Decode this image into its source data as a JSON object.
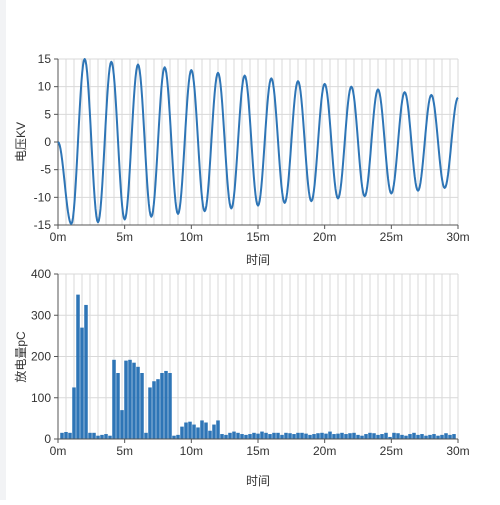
{
  "colors": {
    "series": "#2e75b6",
    "grid": "#d9d9d9",
    "axis": "#555555",
    "text": "#333333",
    "page_edge": "#f2f3f5"
  },
  "chart_data": [
    {
      "type": "line",
      "title": "",
      "xlabel": "时间",
      "ylabel": "电压KV",
      "xlim": [
        0,
        30
      ],
      "ylim": [
        -15,
        15
      ],
      "x_unit": "m",
      "x_ticks": [
        "0m",
        "5m",
        "10m",
        "15m",
        "20m",
        "25m",
        "30m"
      ],
      "y_ticks": [
        "15",
        "10",
        "5",
        "0",
        "-5",
        "-10",
        "-15"
      ],
      "grid": true,
      "legend": "none",
      "series": [
        {
          "name": "",
          "peaks": [
            {
              "x": 0.0,
              "y": 0
            },
            {
              "x": 1.0,
              "y": -14.8
            },
            {
              "x": 2.0,
              "y": 15.0
            },
            {
              "x": 3.0,
              "y": -14.5
            },
            {
              "x": 4.0,
              "y": 14.5
            },
            {
              "x": 5.0,
              "y": -14.0
            },
            {
              "x": 6.0,
              "y": 14.0
            },
            {
              "x": 7.0,
              "y": -13.5
            },
            {
              "x": 8.0,
              "y": 13.5
            },
            {
              "x": 9.0,
              "y": -13.0
            },
            {
              "x": 10.0,
              "y": 13.0
            },
            {
              "x": 11.0,
              "y": -12.5
            },
            {
              "x": 12.0,
              "y": 12.5
            },
            {
              "x": 13.0,
              "y": -12.0
            },
            {
              "x": 14.0,
              "y": 12.0
            },
            {
              "x": 15.0,
              "y": -11.5
            },
            {
              "x": 16.0,
              "y": 11.5
            },
            {
              "x": 17.0,
              "y": -11.0
            },
            {
              "x": 18.0,
              "y": 11.0
            },
            {
              "x": 19.0,
              "y": -10.7
            },
            {
              "x": 20.0,
              "y": 10.5
            },
            {
              "x": 21.0,
              "y": -10.2
            },
            {
              "x": 22.0,
              "y": 10.0
            },
            {
              "x": 23.0,
              "y": -9.8
            },
            {
              "x": 24.0,
              "y": 9.5
            },
            {
              "x": 25.0,
              "y": -9.3
            },
            {
              "x": 26.0,
              "y": 9.0
            },
            {
              "x": 27.0,
              "y": -8.8
            },
            {
              "x": 28.0,
              "y": 8.5
            },
            {
              "x": 29.0,
              "y": -8.3
            },
            {
              "x": 30.0,
              "y": 8.0
            }
          ]
        }
      ]
    },
    {
      "type": "bar",
      "title": "",
      "xlabel": "时间",
      "ylabel": "放电量pC",
      "xlim": [
        0,
        30
      ],
      "ylim": [
        0,
        400
      ],
      "x_unit": "m",
      "x_ticks": [
        "0m",
        "5m",
        "10m",
        "15m",
        "20m",
        "25m",
        "30m"
      ],
      "y_ticks": [
        "400",
        "300",
        "200",
        "100",
        "0"
      ],
      "grid": true,
      "legend": "none",
      "series": [
        {
          "name": "",
          "x": [
            0.3,
            0.6,
            0.9,
            1.2,
            1.5,
            1.8,
            2.1,
            2.4,
            2.7,
            3.0,
            3.3,
            3.6,
            3.9,
            4.2,
            4.5,
            4.8,
            5.1,
            5.4,
            5.7,
            6.0,
            6.3,
            6.6,
            6.9,
            7.2,
            7.5,
            7.8,
            8.1,
            8.4,
            8.7,
            9.0,
            9.3,
            9.6,
            9.9,
            10.2,
            10.5,
            10.8,
            11.1,
            11.4,
            11.7,
            12.0,
            12.3,
            12.6,
            12.9,
            13.2,
            13.5,
            13.8,
            14.1,
            14.4,
            14.7,
            15.0,
            15.3,
            15.6,
            15.9,
            16.2,
            16.5,
            16.8,
            17.1,
            17.4,
            17.7,
            18.0,
            18.3,
            18.6,
            18.9,
            19.2,
            19.5,
            19.8,
            20.1,
            20.4,
            20.7,
            21.0,
            21.3,
            21.6,
            21.9,
            22.2,
            22.5,
            22.8,
            23.1,
            23.4,
            23.7,
            24.0,
            24.3,
            24.6,
            24.9,
            25.2,
            25.5,
            25.8,
            26.1,
            26.4,
            26.7,
            27.0,
            27.3,
            27.6,
            27.9,
            28.2,
            28.5,
            28.8,
            29.1,
            29.4,
            29.7
          ],
          "values": [
            15,
            17,
            15,
            125,
            350,
            270,
            325,
            15,
            15,
            8,
            10,
            12,
            8,
            192,
            160,
            70,
            190,
            192,
            185,
            175,
            160,
            15,
            125,
            140,
            145,
            160,
            165,
            160,
            8,
            10,
            30,
            40,
            42,
            35,
            28,
            45,
            40,
            20,
            35,
            45,
            12,
            10,
            15,
            18,
            15,
            12,
            10,
            12,
            15,
            13,
            18,
            15,
            12,
            15,
            15,
            10,
            15,
            14,
            12,
            15,
            15,
            13,
            10,
            12,
            14,
            15,
            13,
            18,
            12,
            13,
            15,
            12,
            14,
            15,
            10,
            8,
            12,
            15,
            14,
            10,
            12,
            15,
            5,
            15,
            14,
            10,
            8,
            12,
            15,
            10,
            12,
            8,
            10,
            12,
            8,
            10,
            14,
            10,
            12
          ]
        }
      ]
    }
  ]
}
